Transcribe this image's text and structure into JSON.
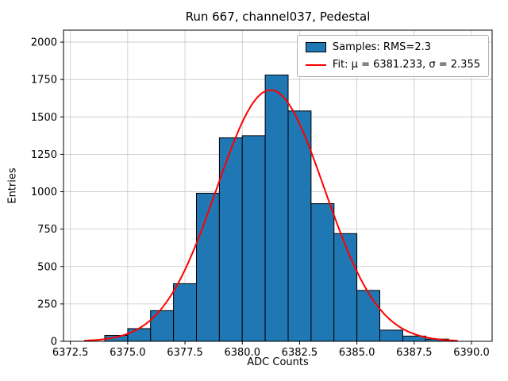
{
  "title": "Run 667, channel037, Pedestal",
  "axes": {
    "xlabel": "ADC Counts",
    "ylabel": "Entries"
  },
  "legend": {
    "entries": [
      {
        "label": "Samples: RMS=2.3",
        "type": "patch",
        "color": "#1f77b4"
      },
      {
        "label": "Fit: μ = 6381.233, σ = 2.355",
        "type": "line",
        "color": "#ff0000"
      }
    ]
  },
  "chart_data": {
    "type": "bar",
    "title": "Run 667, channel037, Pedestal",
    "xlabel": "ADC Counts",
    "ylabel": "Entries",
    "xlim": [
      6372.2,
      6390.9
    ],
    "ylim": [
      0,
      2080
    ],
    "xticks": [
      6372.5,
      6375.0,
      6377.5,
      6380.0,
      6382.5,
      6385.0,
      6387.5,
      6390.0
    ],
    "xtick_labels": [
      "6372.5",
      "6375.0",
      "6377.5",
      "6380.0",
      "6382.5",
      "6385.0",
      "6387.5",
      "6390.0"
    ],
    "yticks": [
      0,
      250,
      500,
      750,
      1000,
      1250,
      1500,
      1750,
      2000
    ],
    "ytick_labels": [
      "0",
      "250",
      "500",
      "750",
      "1000",
      "1250",
      "1500",
      "1750",
      "2000"
    ],
    "grid": true,
    "legend_position": "upper right",
    "colors": {
      "grid": "#c8c8c8",
      "bar_fill": "#1f77b4",
      "bar_edge": "#000000",
      "fit_line": "#ff0000",
      "spine": "#000000"
    },
    "histogram": {
      "bin_start": 6374,
      "bin_width": 1,
      "counts": [
        40,
        85,
        205,
        385,
        990,
        1360,
        1375,
        1780,
        1540,
        920,
        720,
        340,
        75,
        35,
        15
      ]
    },
    "fit": {
      "type": "gaussian",
      "mu": 6381.233,
      "sigma": 2.355,
      "amplitude": 1680,
      "x_range": [
        6373.1,
        6389.4
      ]
    }
  }
}
